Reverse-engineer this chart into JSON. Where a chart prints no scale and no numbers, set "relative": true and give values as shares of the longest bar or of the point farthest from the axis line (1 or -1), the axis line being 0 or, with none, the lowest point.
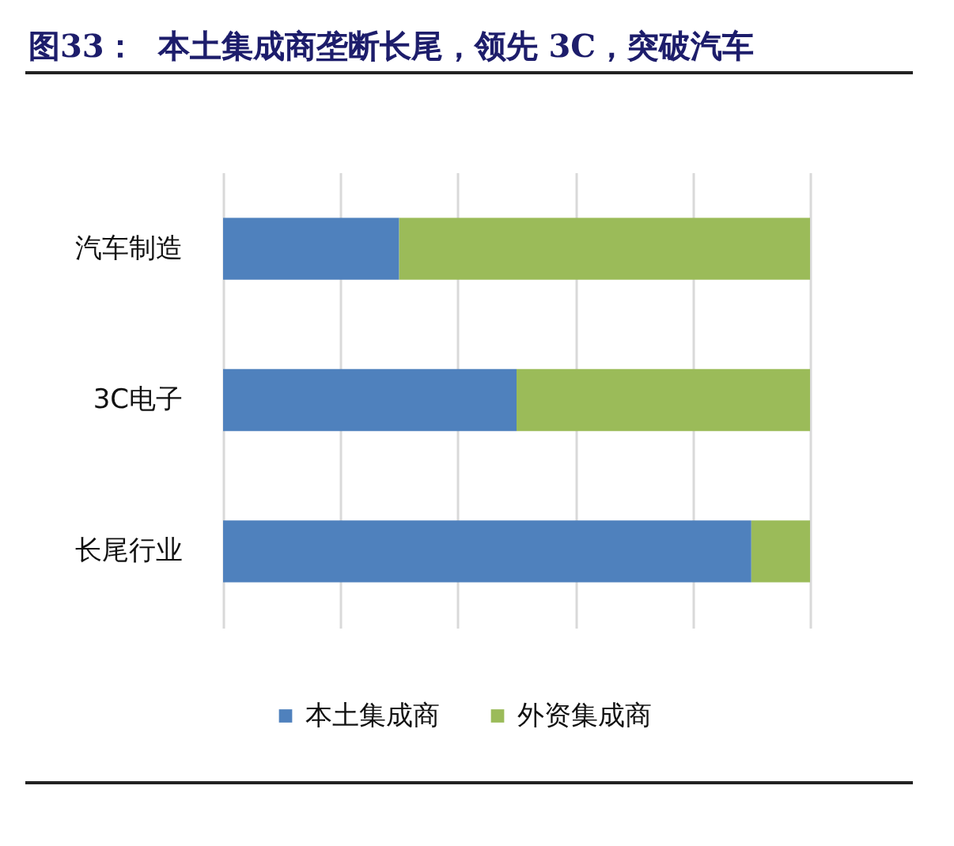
{
  "chart_data": {
    "type": "bar",
    "title": "图33：  本土集成商垄断长尾，领先 3C，突破汽车",
    "orientation": "horizontal",
    "stacked": true,
    "relative": true,
    "categories": [
      "汽车制造",
      "3C电子",
      "长尾行业"
    ],
    "series": [
      {
        "name": "本土集成商",
        "color": "#4f81bd",
        "values": [
          0.3,
          0.5,
          0.9
        ]
      },
      {
        "name": "外资集成商",
        "color": "#9bbb59",
        "values": [
          0.7,
          0.5,
          0.1
        ]
      }
    ],
    "grid": "x",
    "legend": "bottom"
  }
}
